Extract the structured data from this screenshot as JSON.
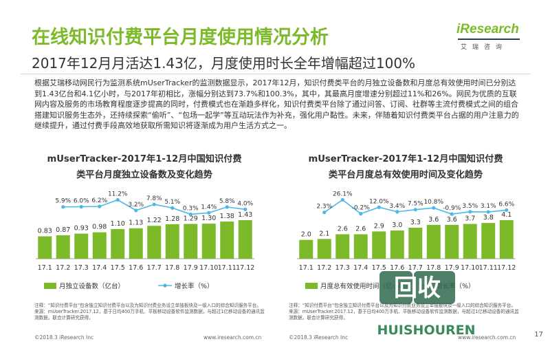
{
  "header": {
    "title": "在线知识付费平台月度使用情况分析",
    "subtitle": "2017年12月月活达1.43亿，月度使用时长全年增幅超过100%"
  },
  "logo": {
    "name": "iResearch",
    "cn": "艾瑞咨询"
  },
  "paragraph": "根据艾瑞移动网民行为监测系统mUserTracker的监测数据显示，2017年12月，知识付费类平台的月独立设备数和月度总有效使用时间已分别达到1.43亿台和4.1亿小时，与2017年初相比，涨幅分别达到73.7%和100.3%，其中，其最高月度增速分别超过11%和26%。网民为优质的互联网内容及服务的市场教育程度逐步提高的同时，付费模式也在渐趋多样化，知识付费类平台除了通过问答、订阅、社群等主流付费模式之间的组合搭建知识服务生态外，还持续探索“偷听”、“包场一起学”等互动玩法作为补充，强化用户黏性。未来，伴随着知识付费类平台占据的用户注意力的继续提升，通过付费手段高效地获取所需知识将逐渐成为用户生活方式之一。",
  "chart_data": [
    {
      "type": "bar",
      "title": "mUserTracker-2017年1-12月中国知识付费类平台月度独立设备数及变化趋势",
      "title_line1": "mUserTracker-2017年1-12月中国知识付费",
      "title_line2": "类平台月度独立设备数及变化趋势",
      "categories": [
        "17.1",
        "17.2",
        "17.3",
        "17.4",
        "17.5",
        "17.6",
        "17.7",
        "17.8",
        "17.9",
        "17.10",
        "17.11",
        "17.12"
      ],
      "value_labels": [
        "0.83",
        "0.87",
        "0.93",
        "0.98",
        "1.10",
        "1.13",
        "1.22",
        "1.28",
        "1.29",
        "1.30",
        "1.38",
        "1.43"
      ],
      "rate_labels": [
        "5.9%",
        "6.0%",
        "6.2%",
        "11.2%",
        "3.2%",
        "7.8%",
        "5.1%",
        "0.3%",
        "1.4%",
        "5.8%",
        "4.0%"
      ],
      "series": [
        {
          "name": "月独立设备数（亿台）",
          "type": "bar",
          "color": "#7cba2a",
          "values": [
            0.83,
            0.87,
            0.93,
            0.98,
            1.1,
            1.13,
            1.22,
            1.28,
            1.29,
            1.3,
            1.38,
            1.43
          ]
        },
        {
          "name": "增长率（%）",
          "type": "line",
          "color": "#4ab8e8",
          "values": [
            null,
            5.9,
            6.0,
            6.2,
            11.2,
            3.2,
            7.8,
            5.1,
            0.3,
            1.4,
            5.8,
            4.0
          ]
        }
      ]
    },
    {
      "type": "bar",
      "title": "mUserTracker-2017年1-12月中国知识付费类平台月度总有效使用时间及变化趋势",
      "title_line1": "mUserTracker-2017年1-12月中国知识付费",
      "title_line2": "类平台月度总有效使用时间及变化趋势",
      "categories": [
        "17.1",
        "17.2",
        "17.3",
        "17.4",
        "17.5",
        "17.6",
        "17.7",
        "17.8",
        "17.9",
        "17.10",
        "17.11",
        "17.12"
      ],
      "value_labels": [
        "2.0",
        "2.1",
        "2.6",
        "2.6",
        "2.9",
        "3.0",
        "3.3",
        "3.6",
        "3.6",
        "3.7",
        "3.8",
        "4.1"
      ],
      "rate_labels": [
        "2.3%",
        "26.1%",
        "-0.2%",
        "12.0%",
        "3.4%",
        "7.5%",
        "10.8%",
        "-0.9%",
        "3.5%",
        "3.1%",
        "6.6%"
      ],
      "series": [
        {
          "name": "月度总有效使用时间（亿小时）",
          "type": "bar",
          "color": "#7cba2a",
          "values": [
            2.0,
            2.1,
            2.6,
            2.6,
            2.9,
            3.0,
            3.3,
            3.6,
            3.6,
            3.7,
            3.8,
            4.1
          ]
        },
        {
          "name": "增长率（%）",
          "type": "line",
          "color": "#4ab8e8",
          "values": [
            null,
            2.3,
            26.1,
            -0.2,
            12.0,
            3.4,
            7.5,
            10.8,
            -0.9,
            3.5,
            3.1,
            6.6
          ]
        }
      ]
    }
  ],
  "notes": [
    {
      "line1": "注释：“知识付费平台”包含独立知识付费平台以及为知识付费业务设立单独板块及一级入口的综合知识服务平台。",
      "line2": "来源：mUserTracker.2017.12，基于日均400万手机、平板移动设备软件监测数据，与超过1亿移动设备的通讯监测数据，联合计算研究获得。"
    },
    {
      "line1": "注释：“知识付费平台”包含独立知识付费平台以及为知识付费业务设立单独板块及一级入口的综合知识服务平台。",
      "line2": "来源：mUserTracker.2017.12，基于日均400万手机、平板移动设备软件监测数据，与超过1亿移动设备的通讯监测数据，联合计算研究获得。"
    }
  ],
  "footer": {
    "copyright": "©2018.3 iResearch Inc",
    "website": "www.iresearch.com.cn",
    "page": "17"
  },
  "watermark": {
    "main": "回收",
    "sub": "HUISHOUREN"
  }
}
